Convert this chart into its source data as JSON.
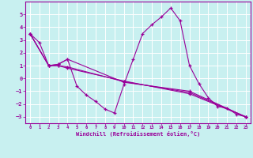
{
  "background_color": "#c8f0f0",
  "grid_color": "#ffffff",
  "line_color": "#990099",
  "marker": "+",
  "xlabel": "Windchill (Refroidissement éolien,°C)",
  "xlim": [
    -0.5,
    23.5
  ],
  "ylim": [
    -3.5,
    6.0
  ],
  "yticks": [
    -3,
    -2,
    -1,
    0,
    1,
    2,
    3,
    4,
    5
  ],
  "xticks": [
    0,
    1,
    2,
    3,
    4,
    5,
    6,
    7,
    8,
    9,
    10,
    11,
    12,
    13,
    14,
    15,
    16,
    17,
    18,
    19,
    20,
    21,
    22,
    23
  ],
  "line_main": {
    "x": [
      0,
      1,
      2,
      3,
      4,
      5,
      6,
      7,
      8,
      9,
      10,
      11,
      12,
      13,
      14,
      15,
      16,
      17,
      18,
      19,
      20,
      21,
      22,
      23
    ],
    "y": [
      3.5,
      2.8,
      1.0,
      1.1,
      1.5,
      -0.6,
      -1.3,
      -1.8,
      -2.4,
      -2.7,
      -0.5,
      1.5,
      3.5,
      4.2,
      4.8,
      5.5,
      4.5,
      1.0,
      -0.4,
      -1.5,
      -2.2,
      -2.3,
      -2.8,
      -3.0
    ]
  },
  "line_a": {
    "x": [
      0,
      2,
      3,
      4,
      10,
      17,
      23
    ],
    "y": [
      3.5,
      1.0,
      1.1,
      1.5,
      -0.3,
      -1.0,
      -3.0
    ]
  },
  "line_b": {
    "x": [
      0,
      2,
      3,
      4,
      10,
      17,
      23
    ],
    "y": [
      3.5,
      1.0,
      1.0,
      0.9,
      -0.25,
      -1.1,
      -3.0
    ]
  },
  "line_c": {
    "x": [
      0,
      2,
      3,
      4,
      10,
      17,
      23
    ],
    "y": [
      3.5,
      1.0,
      1.0,
      0.8,
      -0.2,
      -1.2,
      -3.0
    ]
  }
}
